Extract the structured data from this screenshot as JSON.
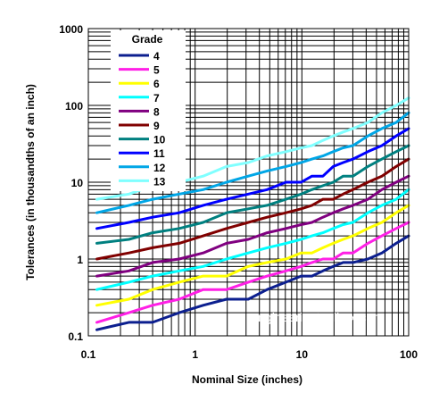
{
  "chart_data": {
    "type": "line",
    "title": "",
    "xlabel": "Nominal Size (inches)",
    "ylabel": "Tolerances (in thousandths of an inch)",
    "xscale": "log",
    "yscale": "log",
    "xlim": [
      0.1,
      100
    ],
    "ylim": [
      0.1,
      1000
    ],
    "x_tick_labels": [
      "0.1",
      "1",
      "10",
      "100"
    ],
    "y_tick_labels": [
      "0.1",
      "1",
      "10",
      "100",
      "1000"
    ],
    "grid": true,
    "legend": {
      "title": "Grade",
      "placement": "top-left"
    },
    "watermark": "engineeringtoolbox.com",
    "x": [
      0.12,
      0.24,
      0.4,
      0.71,
      1.19,
      1.97,
      3.15,
      4.73,
      7.09,
      9.85,
      12.41,
      15.75,
      19.69,
      24.34,
      30.09,
      41.49,
      56.19,
      76.39,
      100
    ],
    "series": [
      {
        "name": "4",
        "color": "#0c1f8f",
        "values": [
          0.12,
          0.15,
          0.15,
          0.2,
          0.25,
          0.3,
          0.3,
          0.4,
          0.5,
          0.6,
          0.6,
          0.7,
          0.8,
          0.9,
          0.9,
          1.0,
          1.2,
          1.6,
          2.0
        ]
      },
      {
        "name": "5",
        "color": "#ff1fe6",
        "values": [
          0.15,
          0.2,
          0.25,
          0.3,
          0.4,
          0.4,
          0.5,
          0.6,
          0.7,
          0.8,
          0.9,
          1.0,
          1.0,
          1.2,
          1.2,
          1.6,
          2.0,
          2.5,
          3.0
        ]
      },
      {
        "name": "6",
        "color": "#ffff00",
        "values": [
          0.25,
          0.3,
          0.4,
          0.5,
          0.6,
          0.6,
          0.8,
          0.9,
          1.0,
          1.2,
          1.2,
          1.4,
          1.6,
          1.8,
          2.0,
          2.5,
          3.0,
          4.0,
          5.0
        ]
      },
      {
        "name": "7",
        "color": "#00ffff",
        "values": [
          0.4,
          0.5,
          0.6,
          0.7,
          0.8,
          1.0,
          1.2,
          1.4,
          1.6,
          1.8,
          2.0,
          2.2,
          2.5,
          2.8,
          3.0,
          4.0,
          5.0,
          6.0,
          8.0
        ]
      },
      {
        "name": "8",
        "color": "#800080",
        "values": [
          0.6,
          0.7,
          0.9,
          1.0,
          1.2,
          1.6,
          1.8,
          2.2,
          2.5,
          2.8,
          3.0,
          3.5,
          4.0,
          4.5,
          5.0,
          6.0,
          8.0,
          10.0,
          12.0
        ]
      },
      {
        "name": "9",
        "color": "#800000",
        "values": [
          1.0,
          1.2,
          1.4,
          1.6,
          2.0,
          2.5,
          3.0,
          3.5,
          4.0,
          4.5,
          5.0,
          6.0,
          6.0,
          7.0,
          8.0,
          10.0,
          12.0,
          16.0,
          20.0
        ]
      },
      {
        "name": "10",
        "color": "#008080",
        "values": [
          1.6,
          1.8,
          2.2,
          2.5,
          3.0,
          4.0,
          4.5,
          5.0,
          6.0,
          7.0,
          8.0,
          9.0,
          10.0,
          12.0,
          12.0,
          16.0,
          20.0,
          25.0,
          30.0
        ]
      },
      {
        "name": "11",
        "color": "#0000ff",
        "values": [
          2.5,
          3.0,
          3.5,
          4.0,
          5.0,
          6.0,
          7.0,
          8.0,
          10.0,
          10.0,
          12.0,
          12.0,
          16.0,
          18.0,
          20.0,
          25.0,
          30.0,
          40.0,
          50.0
        ]
      },
      {
        "name": "12",
        "color": "#00a6e6",
        "values": [
          4.0,
          5.0,
          6.0,
          7.0,
          8.0,
          10.0,
          12.0,
          14.0,
          16.0,
          18.0,
          20.0,
          22.0,
          25.0,
          28.0,
          30.0,
          40.0,
          50.0,
          60.0,
          80.0
        ]
      },
      {
        "name": "13",
        "color": "#80ffff",
        "values": [
          6.0,
          7.0,
          9.0,
          10.0,
          12.0,
          16.0,
          18.0,
          22.0,
          25.0,
          28.0,
          30.0,
          35.0,
          40.0,
          45.0,
          50.0,
          60.0,
          80.0,
          100.0,
          125.0
        ]
      }
    ]
  }
}
